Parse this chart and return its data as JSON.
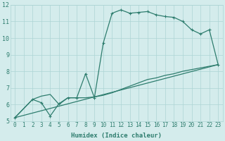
{
  "xlabel": "Humidex (Indice chaleur)",
  "xlim": [
    -0.5,
    23.5
  ],
  "ylim": [
    5,
    12
  ],
  "background_color": "#d4ecec",
  "grid_color": "#add4d4",
  "line_color": "#2e7d6e",
  "line1_x": [
    0,
    2,
    3,
    4,
    5,
    6,
    7,
    8,
    9,
    10,
    11,
    12,
    13,
    14,
    15,
    16,
    17,
    18,
    19,
    20,
    21,
    22,
    23
  ],
  "line1_y": [
    5.2,
    6.3,
    6.1,
    5.3,
    6.05,
    6.4,
    6.4,
    7.85,
    6.4,
    9.7,
    11.5,
    11.7,
    11.5,
    11.55,
    11.6,
    11.4,
    11.3,
    11.25,
    11.0,
    10.5,
    10.25,
    10.5,
    8.4
  ],
  "line2_x": [
    0,
    23
  ],
  "line2_y": [
    5.2,
    8.4
  ],
  "line3_x": [
    0,
    2,
    3,
    4,
    5,
    6,
    7,
    8,
    9,
    10,
    11,
    12,
    13,
    14,
    15,
    16,
    17,
    18,
    19,
    20,
    21,
    22,
    23
  ],
  "line3_y": [
    5.2,
    6.3,
    6.5,
    6.6,
    6.0,
    6.4,
    6.4,
    6.4,
    6.45,
    6.55,
    6.7,
    6.9,
    7.1,
    7.3,
    7.5,
    7.6,
    7.75,
    7.85,
    8.0,
    8.1,
    8.2,
    8.3,
    8.4
  ],
  "xticks": [
    0,
    1,
    2,
    3,
    4,
    5,
    6,
    7,
    8,
    9,
    10,
    11,
    12,
    13,
    14,
    15,
    16,
    17,
    18,
    19,
    20,
    21,
    22,
    23
  ],
  "yticks": [
    5,
    6,
    7,
    8,
    9,
    10,
    11,
    12
  ],
  "tick_fontsize": 5.5,
  "label_fontsize": 6.5
}
